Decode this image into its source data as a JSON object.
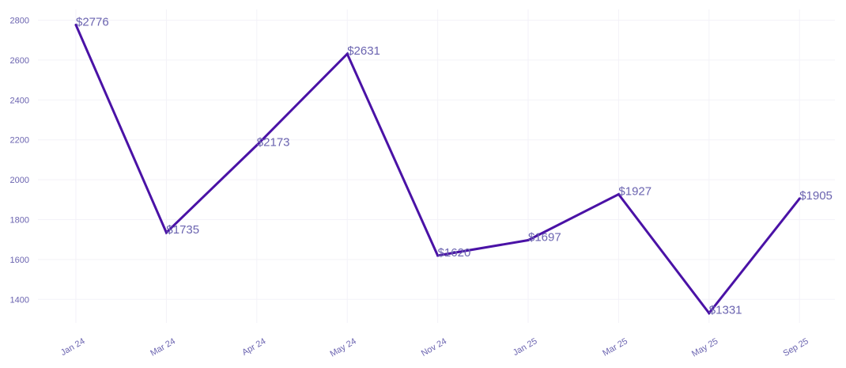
{
  "chart_data": {
    "type": "line",
    "title": "",
    "xlabel": "",
    "ylabel": "",
    "categories": [
      "Jan 24",
      "Mar 24",
      "Apr 24",
      "May 24",
      "Nov 24",
      "Jan 25",
      "Mar 25",
      "May 25",
      "Sep 25"
    ],
    "series": [
      {
        "values": [
          2776,
          1735,
          2173,
          2631,
          1620,
          1697,
          1927,
          1331,
          1905
        ],
        "data_labels": [
          "$2776",
          "$1735",
          "$2173",
          "$2631",
          "$1620",
          "$1697",
          "$1927",
          "$1331",
          "$1905"
        ]
      }
    ],
    "y_ticks": [
      "1400",
      "1600",
      "1800",
      "2000",
      "2200",
      "2400",
      "2600",
      "2800"
    ],
    "y_tick_values": [
      1400,
      1600,
      1800,
      2000,
      2200,
      2400,
      2600,
      2800
    ],
    "ylim": [
      1300,
      2800
    ],
    "grid": true,
    "legend": "none",
    "colors": {
      "line": "#4a12a6",
      "text": "#6b64b0",
      "grid": "#f3f2f8"
    }
  }
}
